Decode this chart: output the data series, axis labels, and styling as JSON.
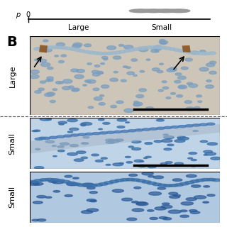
{
  "bg_color": "#ffffff",
  "panel_label_B": "B",
  "panel_label_B_fontsize": 14,
  "side_label_large": "Large",
  "side_label_small": "Small",
  "label_fontsize": 8,
  "dashed_line_color": "#555555",
  "figure_width": 3.2,
  "figure_height": 3.2,
  "dpi": 100,
  "large_bg": "#cdc5b8",
  "small1_bg": "#c0d4e8",
  "small2_bg": "#b0c8e0",
  "cell_color_large": "#7a9ec0",
  "cell_color_small": "#3a6fa8",
  "stain_color": "#8B5520",
  "scale_bar_color": "#000000",
  "circle_color": "#999999"
}
